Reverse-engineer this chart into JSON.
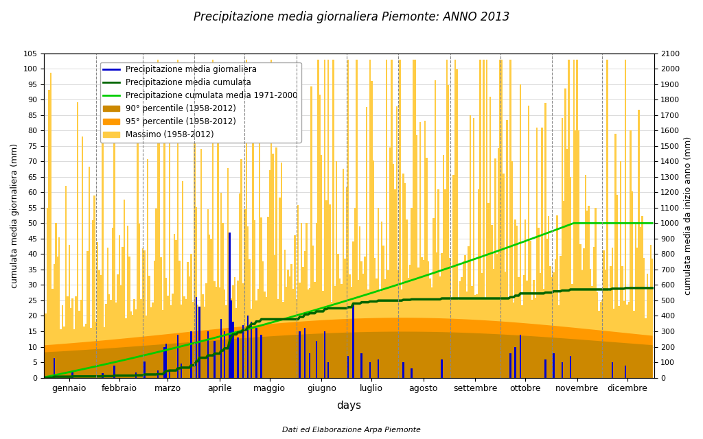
{
  "title": "Precipitazione media giornaliera Piemonte: ANNO 2013",
  "xlabel": "days",
  "footnote": "Dati ed Elaborazione Arpa Piemonte",
  "ylabel_left": "cumulata media giornaliera (mm)",
  "ylabel_right": "cumulata media da inizio anno (mm)",
  "ylim_left": [
    0,
    105
  ],
  "ylim_right": [
    0,
    2100
  ],
  "yticks_left": [
    0,
    5,
    10,
    15,
    20,
    25,
    30,
    35,
    40,
    45,
    50,
    55,
    60,
    65,
    70,
    75,
    80,
    85,
    90,
    95,
    100,
    105
  ],
  "yticks_right": [
    0,
    100,
    200,
    300,
    400,
    500,
    600,
    700,
    800,
    900,
    1000,
    1100,
    1200,
    1300,
    1400,
    1500,
    1600,
    1700,
    1800,
    1900,
    2000,
    2100
  ],
  "months": [
    "gennaio",
    "febbraio",
    "marzo",
    "aprile",
    "maggio",
    "giugno",
    "luglio",
    "agosto",
    "settembre",
    "ottobre",
    "novembre",
    "dicembre"
  ],
  "month_starts": [
    1,
    32,
    60,
    91,
    121,
    152,
    182,
    213,
    244,
    274,
    305,
    335
  ],
  "month_mids": [
    16,
    46,
    75,
    106,
    136,
    167,
    197,
    228,
    259,
    289,
    320,
    350
  ],
  "n_days": 365,
  "color_daily": "#0000cc",
  "color_cumul_2013": "#006400",
  "color_cumul_clim": "#00cc00",
  "color_p90": "#cc8800",
  "color_p95": "#ff9900",
  "color_max": "#ffcc44",
  "legend_labels": [
    "Precipitazione media giornaliera",
    "Precipitazione media cumulata",
    "Precipitazione cumulata media 1971-2000",
    "90° percentile (1958-2012)",
    "95° percentile (1958-2012)",
    "Massimo (1958-2012)"
  ]
}
